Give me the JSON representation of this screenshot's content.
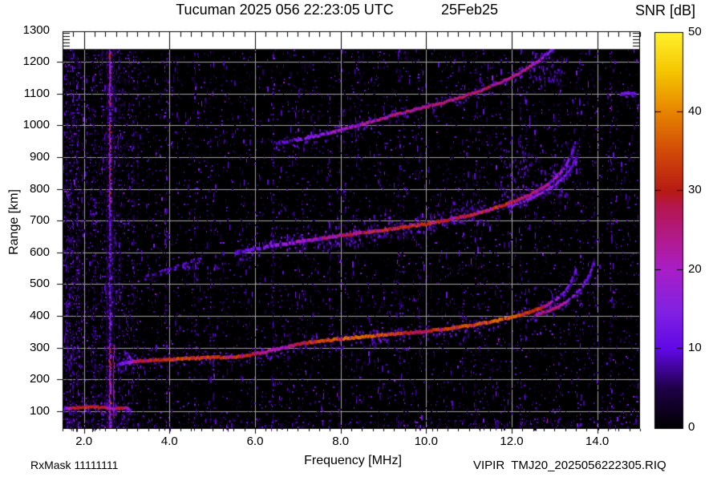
{
  "header": {
    "title": "Tucuman 2025 056 22:23:05 UTC",
    "date": "25Feb25"
  },
  "footer": {
    "left": "RxMask 11111111",
    "right": "VIPIR  TMJ20_2025056222305.RIQ"
  },
  "colorbar": {
    "title": "SNR [dB]",
    "min": 0,
    "max": 50,
    "tick_values": [
      0,
      10,
      20,
      30,
      40,
      50
    ],
    "tick_labels": [
      "0",
      "10",
      "20",
      "30",
      "40",
      "50"
    ],
    "inner_tick_values": [
      10,
      20,
      30,
      40
    ]
  },
  "chart_data": {
    "type": "heatmap",
    "title": "Tucuman ionogram, SNR in dB vs frequency and virtual range",
    "xlabel": "Frequency [MHz]",
    "ylabel": "Range [km]",
    "x_ticks": [
      2,
      4,
      6,
      8,
      10,
      12,
      14
    ],
    "x_tick_labels": [
      "2.0",
      "4.0",
      "6.0",
      "8.0",
      "10.0",
      "12.0",
      "14.0"
    ],
    "y_ticks": [
      100,
      200,
      300,
      400,
      500,
      600,
      700,
      800,
      900,
      1000,
      1100,
      1200,
      1300
    ],
    "y_tick_labels": [
      "100",
      "200",
      "300",
      "400",
      "500",
      "600",
      "700",
      "800",
      "900",
      "1000",
      "1100",
      "1200",
      "1300"
    ],
    "x_range": [
      1.5,
      15.0
    ],
    "y_range": [
      45,
      1296
    ],
    "data_top_km": 1240,
    "x_minor_step": 0.25,
    "y_minor_step_km": 10,
    "grid": true,
    "grid_color": "#a5a5a5",
    "plot_bg": "#000000",
    "page_bg": "#ffffff",
    "colormap_stops": [
      [
        0,
        "#000000"
      ],
      [
        5,
        "#1e0046"
      ],
      [
        10,
        "#6008e6"
      ],
      [
        15,
        "#8222e2"
      ],
      [
        20,
        "#a81ec8"
      ],
      [
        24,
        "#b21a8c"
      ],
      [
        28,
        "#b41650"
      ],
      [
        30,
        "#b71a14"
      ],
      [
        35,
        "#d24a08"
      ],
      [
        40,
        "#e68400"
      ],
      [
        45,
        "#f5c400"
      ],
      [
        50,
        "#fff02a"
      ]
    ],
    "traces": [
      {
        "name": "E-layer",
        "core": 3.5,
        "fringe": 6,
        "flicker": 0.05,
        "points": [
          [
            1.55,
            107,
            11
          ],
          [
            1.62,
            109,
            20
          ],
          [
            1.75,
            110,
            29
          ],
          [
            1.95,
            112,
            32
          ],
          [
            2.15,
            113,
            32
          ],
          [
            2.35,
            112,
            30
          ],
          [
            2.5,
            111,
            28
          ],
          [
            2.62,
            109,
            19
          ],
          [
            2.72,
            108,
            25
          ],
          [
            2.85,
            110,
            30
          ],
          [
            3.0,
            110,
            23
          ],
          [
            3.08,
            108,
            11
          ]
        ]
      },
      {
        "name": "1F-O-main",
        "core": 4,
        "fringe": 7,
        "flicker": 0.1,
        "points": [
          [
            2.78,
            247,
            9
          ],
          [
            2.9,
            250,
            12
          ],
          [
            3.05,
            253,
            15
          ],
          [
            3.2,
            257,
            25
          ],
          [
            3.4,
            259,
            30
          ],
          [
            3.7,
            261,
            32
          ],
          [
            4.0,
            263,
            33
          ],
          [
            4.35,
            265,
            34
          ],
          [
            4.7,
            267,
            34
          ],
          [
            5.0,
            269,
            33
          ],
          [
            5.35,
            270,
            32
          ],
          [
            5.7,
            272,
            32
          ],
          [
            6.0,
            280,
            29
          ],
          [
            6.3,
            288,
            23
          ],
          [
            6.6,
            298,
            20
          ],
          [
            6.9,
            307,
            26
          ],
          [
            7.2,
            315,
            31
          ],
          [
            7.5,
            321,
            34
          ],
          [
            7.8,
            325,
            36
          ],
          [
            8.1,
            329,
            37
          ],
          [
            8.5,
            334,
            37
          ],
          [
            9.0,
            340,
            35
          ],
          [
            9.5,
            346,
            32
          ],
          [
            9.8,
            349,
            26
          ],
          [
            10.1,
            353,
            30
          ],
          [
            10.5,
            360,
            34
          ],
          [
            11.0,
            369,
            36
          ],
          [
            11.5,
            381,
            37
          ],
          [
            12.0,
            396,
            36
          ],
          [
            12.35,
            409,
            34
          ],
          [
            12.65,
            423,
            31
          ],
          [
            12.9,
            440,
            25
          ]
        ]
      },
      {
        "name": "1F-O-tip",
        "core": 3,
        "fringe": 3,
        "dotted": true,
        "points": [
          [
            12.9,
            440,
            20
          ],
          [
            13.1,
            458,
            17
          ],
          [
            13.25,
            478,
            15
          ],
          [
            13.37,
            502,
            13
          ],
          [
            13.45,
            525,
            11
          ],
          [
            13.52,
            550,
            10
          ]
        ]
      },
      {
        "name": "1F-X",
        "core": 3.5,
        "fringe": 4,
        "flicker": 0.1,
        "points": [
          [
            12.55,
            403,
            24
          ],
          [
            12.85,
            416,
            26
          ],
          [
            13.1,
            430,
            24
          ],
          [
            13.3,
            446,
            20
          ]
        ]
      },
      {
        "name": "1F-X-tip",
        "core": 3,
        "fringe": 3,
        "dotted": true,
        "points": [
          [
            13.3,
            446,
            17
          ],
          [
            13.5,
            468,
            15
          ],
          [
            13.65,
            492,
            13
          ],
          [
            13.78,
            518,
            12
          ],
          [
            13.87,
            548,
            11
          ],
          [
            13.94,
            580,
            9
          ]
        ]
      },
      {
        "name": "1F-spur",
        "core": 2.5,
        "fringe": 2,
        "dotted": true,
        "points": [
          [
            2.95,
            287,
            9
          ],
          [
            3.02,
            278,
            11
          ],
          [
            3.08,
            268,
            12
          ],
          [
            3.14,
            260,
            12
          ]
        ]
      },
      {
        "name": "2F-tail",
        "core": 2.5,
        "fringe": 3,
        "dotted": true,
        "points": [
          [
            3.45,
            523,
            8
          ],
          [
            3.8,
            540,
            9
          ],
          [
            4.15,
            556,
            9
          ],
          [
            4.5,
            570,
            9
          ],
          [
            4.75,
            580,
            8
          ]
        ]
      },
      {
        "name": "2F-O",
        "core": 4,
        "fringe": 8,
        "flicker": 0.18,
        "points": [
          [
            5.55,
            598,
            10
          ],
          [
            5.8,
            605,
            11
          ],
          [
            6.1,
            613,
            13
          ],
          [
            6.4,
            620,
            15
          ],
          [
            6.7,
            627,
            17
          ],
          [
            7.0,
            633,
            20
          ],
          [
            7.3,
            639,
            23
          ],
          [
            7.6,
            645,
            25
          ],
          [
            7.9,
            651,
            28
          ],
          [
            8.2,
            657,
            30
          ],
          [
            8.5,
            662,
            31
          ],
          [
            8.8,
            667,
            32
          ],
          [
            9.1,
            672,
            32
          ],
          [
            9.4,
            678,
            31
          ],
          [
            9.7,
            684,
            32
          ],
          [
            10.0,
            690,
            32
          ],
          [
            10.3,
            697,
            31
          ],
          [
            10.6,
            705,
            29
          ],
          [
            10.9,
            714,
            30
          ],
          [
            11.2,
            724,
            32
          ],
          [
            11.5,
            735,
            33
          ],
          [
            11.8,
            748,
            32
          ],
          [
            12.1,
            763,
            30
          ],
          [
            12.4,
            780,
            28
          ],
          [
            12.65,
            797,
            26
          ],
          [
            12.85,
            815,
            24
          ],
          [
            13.0,
            832,
            22
          ],
          [
            13.15,
            852,
            19
          ],
          [
            13.27,
            875,
            16
          ],
          [
            13.37,
            900,
            13
          ],
          [
            13.44,
            925,
            11
          ],
          [
            13.49,
            948,
            9
          ]
        ]
      },
      {
        "name": "2F-X",
        "core": 3,
        "fringe": 4,
        "flicker": 0.15,
        "points": [
          [
            11.9,
            742,
            13
          ],
          [
            12.2,
            757,
            15
          ],
          [
            12.5,
            774,
            17
          ],
          [
            12.8,
            794,
            17
          ],
          [
            13.05,
            817,
            15
          ],
          [
            13.25,
            842,
            13
          ],
          [
            13.4,
            868,
            11
          ],
          [
            13.5,
            895,
            9
          ],
          [
            13.57,
            920,
            8
          ]
        ]
      },
      {
        "name": "3F",
        "core": 3.5,
        "fringe": 6,
        "flicker": 0.12,
        "points": [
          [
            6.45,
            942,
            9
          ],
          [
            6.8,
            950,
            11
          ],
          [
            7.2,
            960,
            14
          ],
          [
            7.6,
            972,
            18
          ],
          [
            8.0,
            985,
            21
          ],
          [
            8.4,
            1000,
            23
          ],
          [
            8.8,
            1015,
            24
          ],
          [
            9.2,
            1030,
            25
          ],
          [
            9.6,
            1045,
            25
          ],
          [
            10.0,
            1058,
            26
          ],
          [
            10.4,
            1072,
            26
          ],
          [
            10.8,
            1088,
            27
          ],
          [
            11.2,
            1106,
            27
          ],
          [
            11.6,
            1127,
            26
          ],
          [
            12.0,
            1152,
            25
          ],
          [
            12.3,
            1174,
            24
          ],
          [
            12.55,
            1196,
            22
          ],
          [
            12.75,
            1216,
            19
          ],
          [
            12.9,
            1232,
            15
          ],
          [
            13.0,
            1244,
            11
          ]
        ]
      },
      {
        "name": "edge-dash",
        "core": 3,
        "fringe": 2,
        "points": [
          [
            14.55,
            1098,
            12
          ],
          [
            14.75,
            1103,
            13
          ],
          [
            14.92,
            1100,
            11
          ]
        ]
      }
    ],
    "clouds": [
      {
        "f0": 5.05,
        "f1": 5.95,
        "km0": 552,
        "km1": 598,
        "d": 0.12
      },
      {
        "f0": 6.2,
        "f1": 8.3,
        "km0": 618,
        "km1": 688,
        "d": 0.2
      },
      {
        "f0": 8.3,
        "f1": 10.2,
        "km0": 652,
        "km1": 728,
        "d": 0.26
      },
      {
        "f0": 10.2,
        "f1": 11.4,
        "km0": 692,
        "km1": 775,
        "d": 0.2
      },
      {
        "f0": 11.7,
        "f1": 13.35,
        "km0": 770,
        "km1": 950,
        "d": 0.16
      },
      {
        "f0": 6.4,
        "f1": 9.6,
        "km0": 298,
        "km1": 356,
        "d": 0.1
      },
      {
        "f0": 12.4,
        "f1": 13.3,
        "km0": 1140,
        "km1": 1238,
        "d": 0.18
      },
      {
        "f0": 1.55,
        "f1": 3.1,
        "km0": 96,
        "km1": 126,
        "d": 0.14
      }
    ],
    "interference": [
      {
        "f": 2.615,
        "base": 11,
        "width": 3,
        "bright": [
          [
            60,
            130
          ],
          [
            150,
            260
          ],
          [
            430,
            533
          ]
        ]
      },
      {
        "f": 2.54,
        "base": 6,
        "width": 1.5,
        "bright": []
      },
      {
        "f": 2.7,
        "base": 5,
        "width": 1.5,
        "bright": [
          [
            430,
            520
          ]
        ]
      }
    ],
    "noise_streaks": [
      {
        "f": 3.9,
        "d": 0.07
      },
      {
        "f": 4.45,
        "d": 0.14
      },
      {
        "f": 4.6,
        "d": 0.08
      },
      {
        "f": 5.85,
        "d": 0.07
      },
      {
        "f": 6.4,
        "d": 0.08
      },
      {
        "f": 7.1,
        "d": 0.06
      },
      {
        "f": 7.95,
        "d": 0.07
      },
      {
        "f": 8.65,
        "d": 0.08
      },
      {
        "f": 9.35,
        "d": 0.08
      },
      {
        "f": 10.85,
        "d": 0.13
      },
      {
        "f": 11.15,
        "d": 0.1
      },
      {
        "f": 12.2,
        "d": 0.08
      },
      {
        "f": 12.55,
        "d": 0.09
      },
      {
        "f": 13.6,
        "d": 0.08
      },
      {
        "f": 14.3,
        "d": 0.1
      }
    ]
  }
}
